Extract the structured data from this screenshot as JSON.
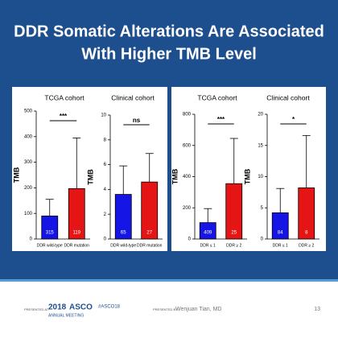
{
  "slide": {
    "title_lines": [
      "DDR Somatic Alterations Are Associated",
      "With Higher TMB Level"
    ],
    "footer": {
      "presented_at": "PRESENTED AT:",
      "meeting_year": "2018",
      "meeting_name": "ASCO",
      "meeting_sub": "ANNUAL MEETING",
      "hashtag": "#ASCO18",
      "presented_by": "PRESENTED BY:",
      "presenter": "Wenjuan Tian, MD",
      "page": "13"
    }
  },
  "chart_data": [
    {
      "type": "bar",
      "title": "TCGA cohort",
      "y_label": "TMB",
      "categories": [
        "DDR wild-type",
        "DDR mutation"
      ],
      "values": [
        90,
        197
      ],
      "errors": [
        65,
        198
      ],
      "n_labels": [
        "315",
        "119"
      ],
      "colors": [
        "#1515e6",
        "#e61515"
      ],
      "annotation": "***",
      "ylim": [
        0,
        500
      ],
      "yticks": [
        0,
        100,
        200,
        300,
        400,
        500
      ]
    },
    {
      "type": "bar",
      "title": "Clinical cohort",
      "y_label": "TMB",
      "categories": [
        "DDR wild-type",
        "DDR mutation"
      ],
      "values": [
        3.6,
        4.6
      ],
      "errors": [
        2.3,
        2.3
      ],
      "n_labels": [
        "65",
        "27"
      ],
      "colors": [
        "#1515e6",
        "#e61515"
      ],
      "annotation": "ns",
      "ylim": [
        0,
        10
      ],
      "yticks": [
        0,
        2,
        4,
        6,
        8,
        10
      ]
    },
    {
      "type": "bar",
      "title": "TCGA cohort",
      "y_label": "TMB",
      "categories": [
        "DDR ≤ 1",
        "DDR ≥ 2"
      ],
      "values": [
        105,
        355
      ],
      "errors": [
        90,
        290
      ],
      "n_labels": [
        "409",
        "25"
      ],
      "colors": [
        "#1515e6",
        "#e61515"
      ],
      "annotation": "***",
      "ylim": [
        0,
        800
      ],
      "yticks": [
        0,
        200,
        400,
        600,
        800
      ]
    },
    {
      "type": "bar",
      "title": "Clinical cohort",
      "y_label": "TMB",
      "categories": [
        "DDR ≤ 1",
        "DDR ≥ 2"
      ],
      "values": [
        4.2,
        8.2
      ],
      "errors": [
        3.9,
        8.4
      ],
      "n_labels": [
        "84",
        "8"
      ],
      "colors": [
        "#1515e6",
        "#e61515"
      ],
      "annotation": "*",
      "ylim": [
        0,
        20
      ],
      "yticks": [
        0,
        5,
        10,
        15,
        20
      ]
    }
  ]
}
